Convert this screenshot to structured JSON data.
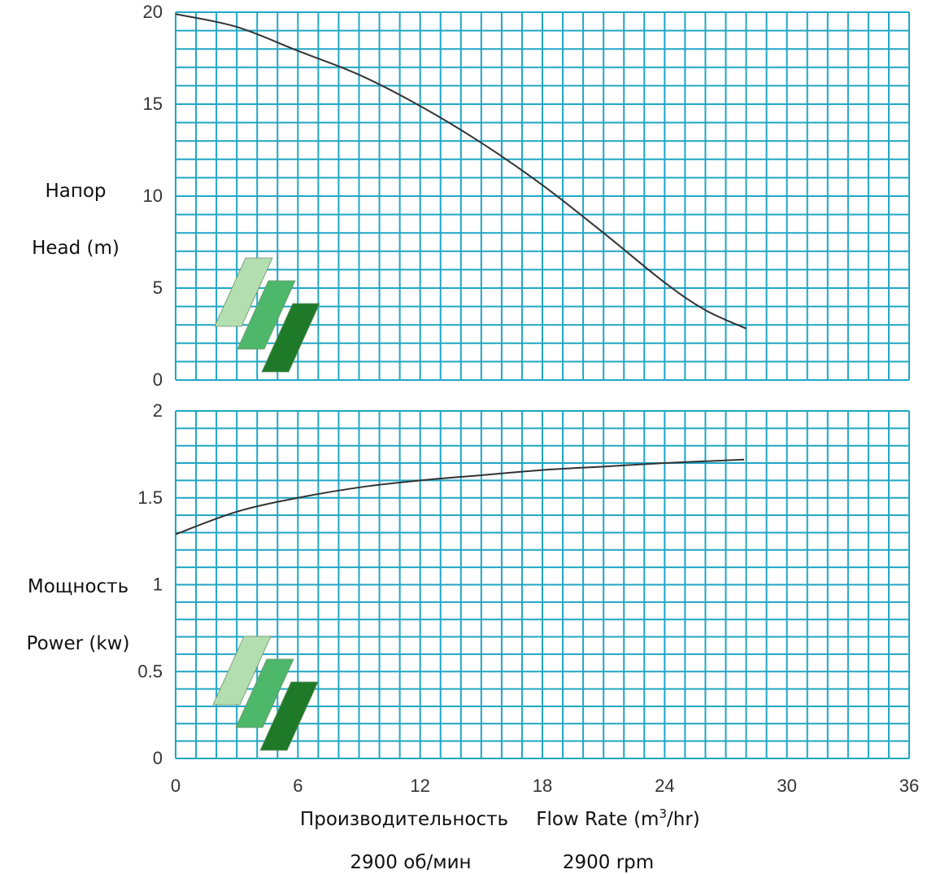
{
  "colors": {
    "grid": "#1fa6c4",
    "curve": "#333333",
    "logo_light": "#b3dfb0",
    "logo_mid": "#4db86a",
    "logo_dark": "#1e7a28"
  },
  "chart_data": [
    {
      "type": "line",
      "panel": "top",
      "ylabel_ru": "Напор",
      "ylabel_en": "Head (m)",
      "ylim": [
        0,
        20
      ],
      "xlim": [
        0,
        36
      ],
      "y_ticks": [
        "0",
        "5",
        "10",
        "15",
        "20"
      ],
      "grid": true,
      "series": [
        {
          "x": [
            0,
            3,
            6,
            9,
            12,
            15,
            18,
            21,
            24,
            26,
            28
          ],
          "y": [
            19.9,
            19.2,
            17.9,
            16.6,
            14.9,
            12.9,
            10.6,
            8.0,
            5.3,
            3.8,
            2.8
          ]
        }
      ]
    },
    {
      "type": "line",
      "panel": "bottom",
      "ylabel_ru": "Мощность",
      "ylabel_en": "Power (kw)",
      "ylim": [
        0,
        2
      ],
      "xlim": [
        0,
        36
      ],
      "y_ticks": [
        "0",
        "0.5",
        "1",
        "1.5",
        "2"
      ],
      "x_ticks": [
        "0",
        "6",
        "12",
        "18",
        "24",
        "30",
        "36"
      ],
      "grid": true,
      "series": [
        {
          "x": [
            0,
            3,
            6,
            9,
            12,
            15,
            18,
            21,
            24,
            27.9
          ],
          "y": [
            1.29,
            1.42,
            1.5,
            1.56,
            1.6,
            1.63,
            1.66,
            1.68,
            1.7,
            1.72
          ]
        }
      ]
    }
  ],
  "footer": {
    "xlabel_ru": "Производительность",
    "xlabel_en_prefix": "Flow Rate (m",
    "xlabel_en_sup": "3",
    "xlabel_en_suffix": "/hr)",
    "speed_ru": "2900 об/мин",
    "speed_en": "2900 rpm"
  }
}
